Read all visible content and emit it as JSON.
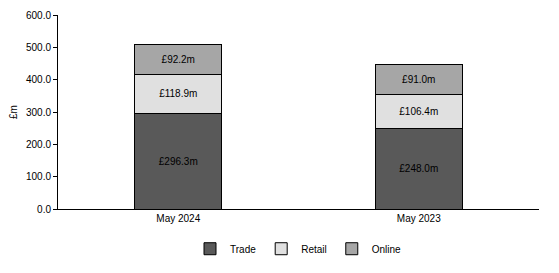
{
  "chart_data": {
    "type": "bar",
    "stacked": true,
    "data_labels": true,
    "grid": false,
    "legend": "bottom",
    "y_label": "£m",
    "categories": [
      "May 2024",
      "May 2023"
    ],
    "series": [
      {
        "name": "Trade",
        "color": "#595959",
        "values": [
          296.3,
          248.0
        ],
        "value_labels": [
          "£296.3m",
          "£248.0m"
        ]
      },
      {
        "name": "Retail",
        "color": "#e0e0e0",
        "values": [
          118.9,
          106.4
        ],
        "value_labels": [
          "£118.9m",
          "£106.4m"
        ]
      },
      {
        "name": "Online",
        "color": "#a6a6a6",
        "values": [
          92.2,
          91.0
        ],
        "value_labels": [
          "£92.2m",
          "£91.0m"
        ]
      }
    ],
    "ylim": [
      0,
      600
    ],
    "yticks": [
      {
        "value": 0,
        "label": "0.0"
      },
      {
        "value": 100,
        "label": "100.0"
      },
      {
        "value": 200,
        "label": "200.0"
      },
      {
        "value": 300,
        "label": "300.0"
      },
      {
        "value": 400,
        "label": "400.0"
      },
      {
        "value": 500,
        "label": "500.0"
      },
      {
        "value": 600,
        "label": "600.0"
      }
    ]
  }
}
